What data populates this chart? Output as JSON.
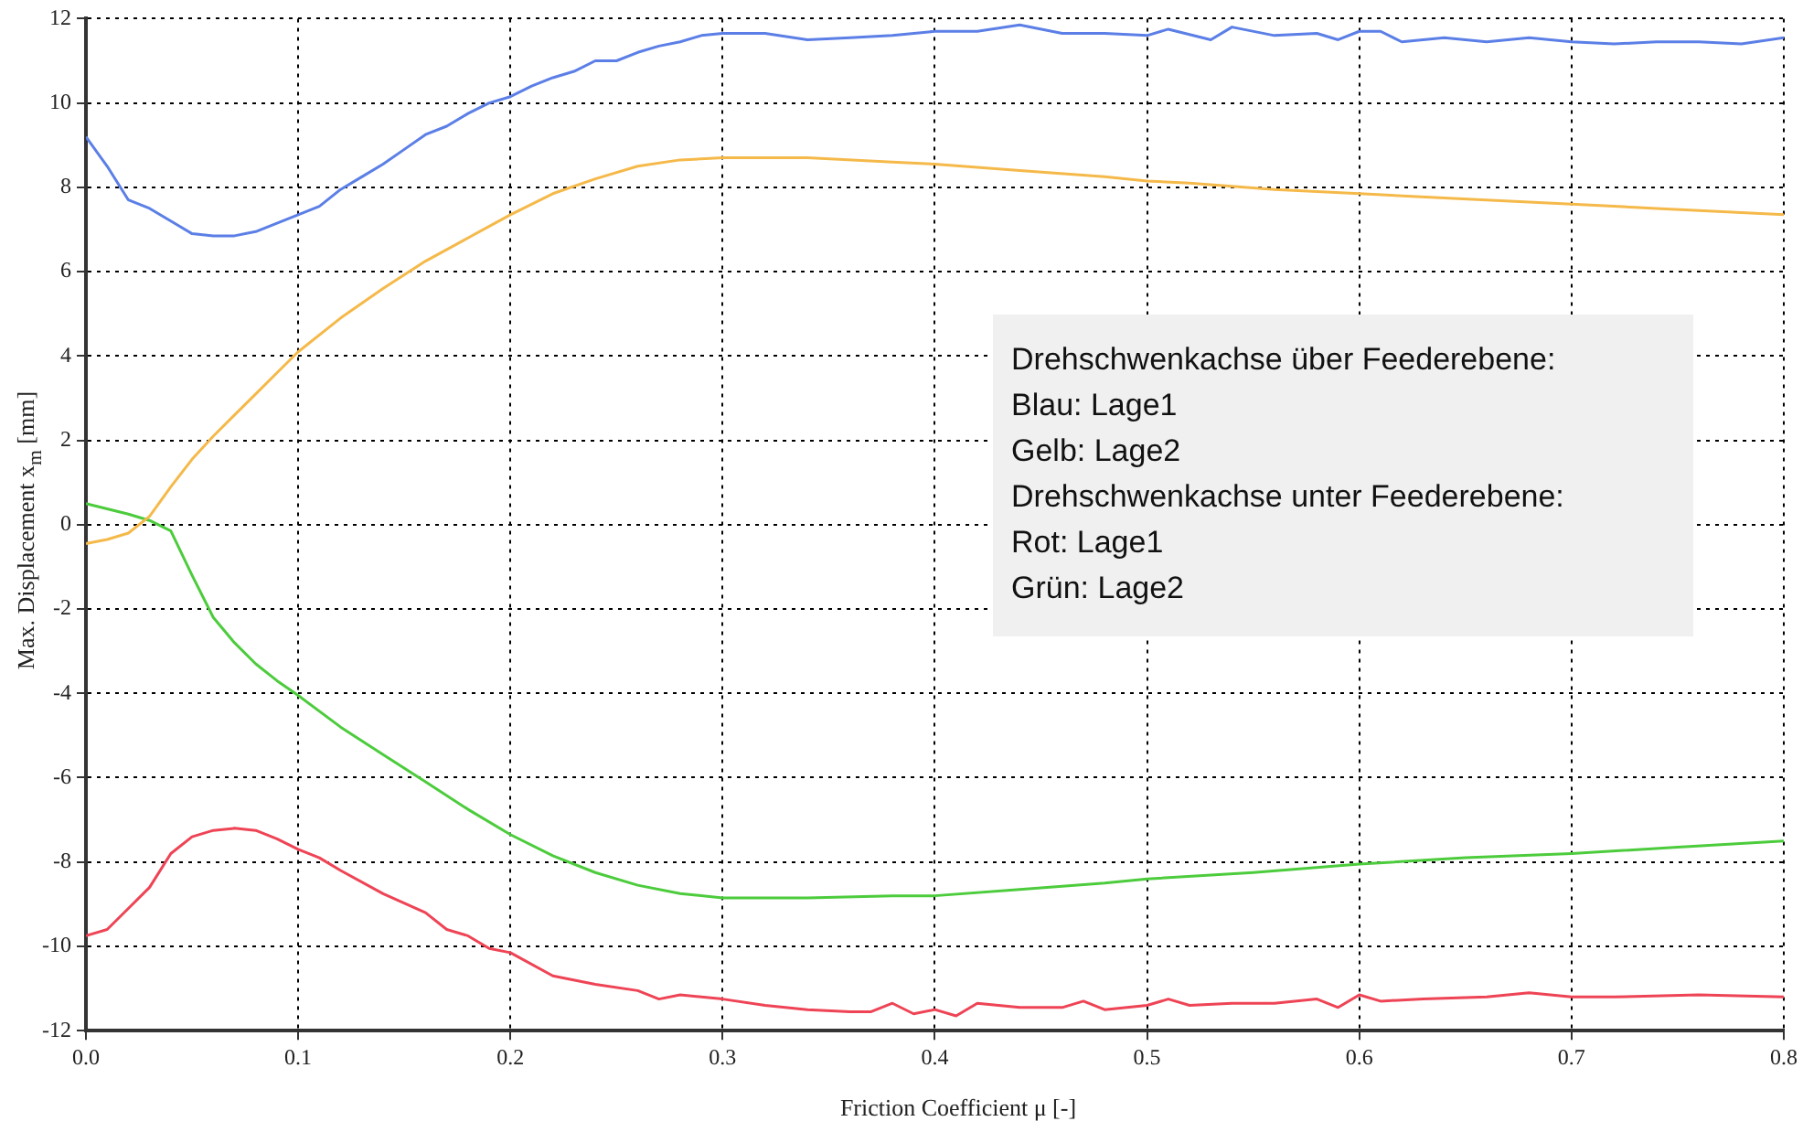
{
  "chart_data": {
    "type": "line",
    "xlabel": "Friction Coefficient μ [-]",
    "ylabel": "Max. Displacement x$_{m}$ [mm]",
    "xlim": [
      0,
      0.8
    ],
    "xticks": [
      {
        "value": 0,
        "label": "0.0"
      },
      0.1,
      0.2,
      0.3,
      0.4,
      0.5,
      0.6,
      0.7,
      0.8
    ],
    "ylim": [
      -12,
      12
    ],
    "yticks": [
      -12,
      -10,
      -8,
      -6,
      -4,
      -2,
      0,
      2,
      4,
      6,
      8,
      10,
      12
    ],
    "grid": true,
    "legend": false,
    "marker": "none",
    "line_style": "solid",
    "annotations": [
      "Drehschwenkachse über Feederebene:",
      "Blau: Lage1",
      "Gelb: Lage2",
      "Drehschwenkachse unter Feederebene:",
      "Rot: Lage1",
      "Grün: Lage2"
    ],
    "series": [
      {
        "color": "#5b7fe6",
        "x": [
          0,
          0.01,
          0.02,
          0.03,
          0.04,
          0.05,
          0.06,
          0.07,
          0.08,
          0.09,
          0.1,
          0.11,
          0.12,
          0.13,
          0.14,
          0.15,
          0.16,
          0.17,
          0.18,
          0.19,
          0.2,
          0.21,
          0.22,
          0.23,
          0.24,
          0.25,
          0.26,
          0.27,
          0.28,
          0.29,
          0.3,
          0.32,
          0.34,
          0.36,
          0.38,
          0.4,
          0.42,
          0.44,
          0.46,
          0.48,
          0.5,
          0.51,
          0.53,
          0.54,
          0.56,
          0.58,
          0.59,
          0.6,
          0.61,
          0.62,
          0.64,
          0.66,
          0.68,
          0.7,
          0.72,
          0.74,
          0.76,
          0.78,
          0.8
        ],
        "values": [
          9.2,
          8.5,
          7.7,
          7.5,
          7.2,
          6.9,
          6.85,
          6.85,
          6.95,
          7.15,
          7.35,
          7.55,
          7.95,
          8.25,
          8.55,
          8.9,
          9.25,
          9.45,
          9.75,
          10,
          10.15,
          10.4,
          10.6,
          10.75,
          11,
          11,
          11.2,
          11.35,
          11.45,
          11.6,
          11.65,
          11.65,
          11.5,
          11.55,
          11.6,
          11.7,
          11.7,
          11.85,
          11.65,
          11.65,
          11.6,
          11.75,
          11.5,
          11.8,
          11.6,
          11.65,
          11.5,
          11.7,
          11.7,
          11.45,
          11.55,
          11.45,
          11.55,
          11.45,
          11.4,
          11.45,
          11.45,
          11.4,
          11.55
        ]
      },
      {
        "color": "#f5b94a",
        "x": [
          0,
          0.01,
          0.02,
          0.03,
          0.04,
          0.05,
          0.06,
          0.07,
          0.08,
          0.09,
          0.1,
          0.12,
          0.14,
          0.16,
          0.18,
          0.2,
          0.22,
          0.24,
          0.26,
          0.28,
          0.3,
          0.34,
          0.38,
          0.4,
          0.44,
          0.48,
          0.5,
          0.52,
          0.56,
          0.6,
          0.64,
          0.68,
          0.7,
          0.74,
          0.78,
          0.8
        ],
        "values": [
          -0.45,
          -0.35,
          -0.2,
          0.2,
          0.9,
          1.55,
          2.1,
          2.6,
          3.1,
          3.6,
          4.1,
          4.9,
          5.6,
          6.25,
          6.8,
          7.35,
          7.85,
          8.2,
          8.5,
          8.65,
          8.7,
          8.7,
          8.6,
          8.55,
          8.4,
          8.25,
          8.15,
          8.1,
          7.95,
          7.85,
          7.75,
          7.65,
          7.6,
          7.5,
          7.4,
          7.35
        ]
      },
      {
        "color": "#ee4455",
        "x": [
          0,
          0.01,
          0.02,
          0.03,
          0.04,
          0.05,
          0.06,
          0.07,
          0.08,
          0.09,
          0.1,
          0.11,
          0.12,
          0.14,
          0.16,
          0.17,
          0.18,
          0.19,
          0.2,
          0.22,
          0.24,
          0.26,
          0.27,
          0.28,
          0.3,
          0.32,
          0.34,
          0.36,
          0.37,
          0.38,
          0.39,
          0.4,
          0.41,
          0.42,
          0.44,
          0.46,
          0.47,
          0.48,
          0.5,
          0.51,
          0.52,
          0.54,
          0.56,
          0.58,
          0.59,
          0.6,
          0.61,
          0.63,
          0.66,
          0.68,
          0.7,
          0.72,
          0.76,
          0.8
        ],
        "values": [
          -9.75,
          -9.6,
          -9.1,
          -8.6,
          -7.8,
          -7.4,
          -7.25,
          -7.2,
          -7.25,
          -7.45,
          -7.7,
          -7.9,
          -8.2,
          -8.75,
          -9.2,
          -9.6,
          -9.75,
          -10.05,
          -10.15,
          -10.7,
          -10.9,
          -11.05,
          -11.25,
          -11.15,
          -11.25,
          -11.4,
          -11.5,
          -11.55,
          -11.55,
          -11.35,
          -11.6,
          -11.5,
          -11.65,
          -11.35,
          -11.45,
          -11.45,
          -11.3,
          -11.5,
          -11.4,
          -11.25,
          -11.4,
          -11.35,
          -11.35,
          -11.25,
          -11.45,
          -11.15,
          -11.3,
          -11.25,
          -11.2,
          -11.1,
          -11.2,
          -11.2,
          -11.15,
          -11.2
        ]
      },
      {
        "color": "#4ccc3c",
        "x": [
          0,
          0.02,
          0.03,
          0.04,
          0.05,
          0.06,
          0.07,
          0.08,
          0.09,
          0.1,
          0.12,
          0.14,
          0.16,
          0.18,
          0.2,
          0.22,
          0.24,
          0.26,
          0.28,
          0.3,
          0.34,
          0.38,
          0.4,
          0.44,
          0.48,
          0.5,
          0.55,
          0.6,
          0.65,
          0.7,
          0.75,
          0.8
        ],
        "values": [
          0.5,
          0.25,
          0.1,
          -0.15,
          -1.2,
          -2.2,
          -2.8,
          -3.3,
          -3.7,
          -4.05,
          -4.8,
          -5.45,
          -6.1,
          -6.75,
          -7.35,
          -7.85,
          -8.25,
          -8.55,
          -8.75,
          -8.85,
          -8.85,
          -8.8,
          -8.8,
          -8.65,
          -8.5,
          -8.4,
          -8.25,
          -8.05,
          -7.9,
          -7.8,
          -7.65,
          -7.5
        ]
      }
    ]
  }
}
